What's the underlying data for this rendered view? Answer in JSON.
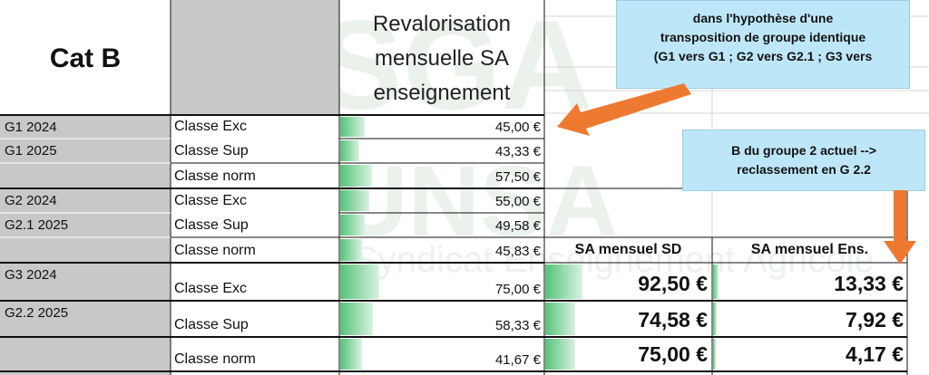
{
  "header": {
    "title": "Cat B",
    "column_title_lines": [
      "Revalorisation",
      "mensuelle SA",
      "enseignement"
    ]
  },
  "rows": [
    {
      "group": "G1 2024",
      "classe": "Classe Exc",
      "value": "45,00 €",
      "bar": 0.26
    },
    {
      "group": "G1 2025",
      "classe": "Classe Sup",
      "value": "43,33 €",
      "bar": 0.21
    },
    {
      "group": "",
      "classe": "Classe norm",
      "value": "57,50 €",
      "bar": 0.34
    },
    {
      "group": "G2 2024",
      "classe": "Classe Exc",
      "value": "55,00 €",
      "bar": 0.31
    },
    {
      "group": "G2.1 2025",
      "classe": "Classe Sup",
      "value": "49,58 €",
      "bar": 0.27
    },
    {
      "group": "",
      "classe": "Classe norm",
      "value": "45,83 €",
      "bar": 0.24
    },
    {
      "group": "G3 2024",
      "classe": "Classe Exc",
      "value": "75,00 €",
      "bar": 0.42
    },
    {
      "group": "G2.2 2025",
      "classe": "Classe Sup",
      "value": "58,33 €",
      "bar": 0.35
    },
    {
      "group": "",
      "classe": "Classe norm",
      "value": "41,67 €",
      "bar": 0.24
    }
  ],
  "sa_table": {
    "col1_header": "SA mensuel SD",
    "col2_header": "SA mensuel Ens.",
    "rows": [
      {
        "sd": "92,50 €",
        "sd_bar": 0.22,
        "ens": "13,33 €",
        "ens_bar": 0.03
      },
      {
        "sd": "74,58 €",
        "sd_bar": 0.18,
        "ens": "7,92 €",
        "ens_bar": 0.02
      },
      {
        "sd": "75,00 €",
        "sd_bar": 0.18,
        "ens": "4,17 €",
        "ens_bar": 0.01
      }
    ]
  },
  "callouts": {
    "top_lines": [
      "dans l'hypothèse d'une",
      "transposition de groupe identique",
      "(G1 vers G1 ; G2 vers G2.1 ; G3 vers"
    ],
    "mid_lines": [
      "B du groupe 2 actuel -->",
      "reclassement en G 2.2"
    ]
  },
  "colors": {
    "gray_fill": "#c8c8c8",
    "bar_green": "#56c27a",
    "callout_fill": "#bde7f8",
    "arrow_orange": "#ee7a32"
  }
}
